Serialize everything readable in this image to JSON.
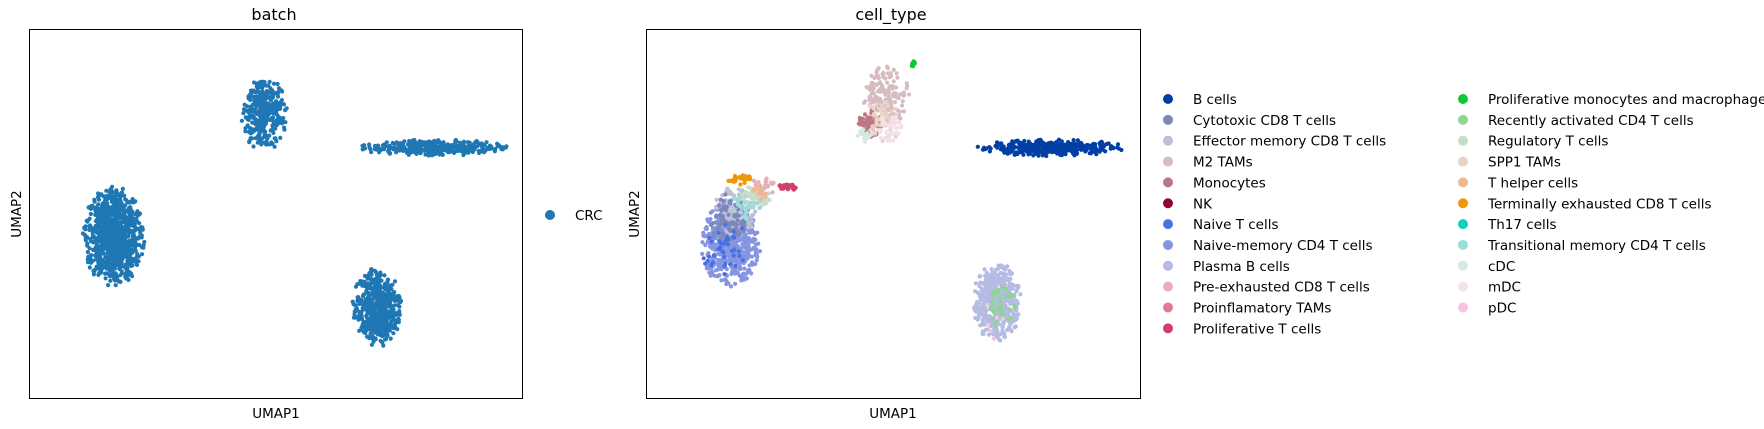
{
  "chart_data": [
    {
      "type": "scatter",
      "title": "batch",
      "xlabel": "UMAP1",
      "ylabel": "UMAP2",
      "xticks": [],
      "yticks": [],
      "xlim": [
        -1,
        19
      ],
      "ylim": [
        -1,
        14
      ],
      "legend": {
        "placement": "right",
        "entries": [
          {
            "name": "CRC",
            "color": "#1f77b4"
          }
        ]
      },
      "clusters": [
        {
          "name": "CRC",
          "center": [
            2.4,
            5.6
          ],
          "spread": [
            1.2,
            1.95
          ],
          "n": 900,
          "color": "#1f77b4"
        },
        {
          "name": "CRC",
          "center": [
            8.5,
            10.6
          ],
          "spread": [
            0.9,
            1.5
          ],
          "n": 320,
          "color": "#1f77b4"
        },
        {
          "name": "CRC",
          "center": [
            15.4,
            9.2
          ],
          "spread": [
            2.9,
            0.32
          ],
          "n": 360,
          "color": "#1f77b4"
        },
        {
          "name": "CRC",
          "center": [
            13.1,
            2.7
          ],
          "spread": [
            0.95,
            1.55
          ],
          "n": 520,
          "color": "#1f77b4"
        }
      ]
    },
    {
      "type": "scatter",
      "title": "cell_type",
      "xlabel": "UMAP1",
      "ylabel": "UMAP2",
      "xticks": [],
      "yticks": [],
      "xlim": [
        -1,
        19
      ],
      "ylim": [
        -1,
        14
      ],
      "legend": {
        "placement": "right",
        "columns": 2,
        "entries": [
          {
            "name": "B cells",
            "color": "#023fa5"
          },
          {
            "name": "Cytotoxic CD8 T cells",
            "color": "#7d87b9"
          },
          {
            "name": "Effector memory CD8 T cells",
            "color": "#bec1d4"
          },
          {
            "name": "M2 TAMs",
            "color": "#d6bcc0"
          },
          {
            "name": "Monocytes",
            "color": "#bb7784"
          },
          {
            "name": "NK",
            "color": "#8e063b"
          },
          {
            "name": "Naive T cells",
            "color": "#4a6fe3"
          },
          {
            "name": "Naive-memory CD4 T cells",
            "color": "#8595e1"
          },
          {
            "name": "Plasma B cells",
            "color": "#b5bbe3"
          },
          {
            "name": "Pre-exhausted CD8 T cells",
            "color": "#e6afb9"
          },
          {
            "name": "Proinflamatory TAMs",
            "color": "#e07b91"
          },
          {
            "name": "Proliferative T cells",
            "color": "#d33f6a"
          },
          {
            "name": "Proliferative monocytes and macrophages",
            "color": "#11c638"
          },
          {
            "name": "Recently activated CD4 T cells",
            "color": "#8dd593"
          },
          {
            "name": "Regulatory T cells",
            "color": "#c6dec7"
          },
          {
            "name": "SPP1 TAMs",
            "color": "#ead3c6"
          },
          {
            "name": "T helper cells",
            "color": "#f0b98d"
          },
          {
            "name": "Terminally exhausted CD8 T cells",
            "color": "#ef9708"
          },
          {
            "name": "Th17 cells",
            "color": "#0fcfc0"
          },
          {
            "name": "Transitional memory CD4 T cells",
            "color": "#9cded6"
          },
          {
            "name": "cDC",
            "color": "#d5eae7"
          },
          {
            "name": "mDC",
            "color": "#f3e1eb"
          },
          {
            "name": "pDC",
            "color": "#f6c4e1"
          }
        ]
      },
      "clusters": [
        {
          "name": "Naive-memory CD4 T cells",
          "center": [
            2.4,
            5.3
          ],
          "spread": [
            1.15,
            1.7
          ],
          "n": 520,
          "color": "#8595e1"
        },
        {
          "name": "Effector memory CD8 T cells",
          "center": [
            2.6,
            6.6
          ],
          "spread": [
            0.9,
            1.0
          ],
          "n": 110,
          "color": "#bec1d4"
        },
        {
          "name": "Cytotoxic CD8 T cells",
          "center": [
            2.4,
            6.2
          ],
          "spread": [
            0.8,
            1.1
          ],
          "n": 80,
          "color": "#7d87b9"
        },
        {
          "name": "Naive T cells",
          "center": [
            2.2,
            5.0
          ],
          "spread": [
            0.9,
            1.3
          ],
          "n": 40,
          "color": "#4a6fe3"
        },
        {
          "name": "Regulatory T cells",
          "center": [
            3.4,
            7.2
          ],
          "spread": [
            0.6,
            0.45
          ],
          "n": 45,
          "color": "#c6dec7"
        },
        {
          "name": "Transitional memory CD4 T cells",
          "center": [
            3.0,
            6.8
          ],
          "spread": [
            0.6,
            0.5
          ],
          "n": 25,
          "color": "#9cded6"
        },
        {
          "name": "Terminally exhausted CD8 T cells",
          "center": [
            2.8,
            7.9
          ],
          "spread": [
            0.55,
            0.2
          ],
          "n": 25,
          "color": "#ef9708"
        },
        {
          "name": "Pre-exhausted CD8 T cells",
          "center": [
            3.7,
            7.6
          ],
          "spread": [
            0.6,
            0.35
          ],
          "n": 30,
          "color": "#e6afb9"
        },
        {
          "name": "Proliferative T cells",
          "center": [
            4.7,
            7.6
          ],
          "spread": [
            0.35,
            0.15
          ],
          "n": 30,
          "color": "#d33f6a"
        },
        {
          "name": "T helper cells",
          "center": [
            3.6,
            7.4
          ],
          "spread": [
            0.4,
            0.3
          ],
          "n": 12,
          "color": "#f0b98d"
        },
        {
          "name": "M2 TAMs",
          "center": [
            8.7,
            11.3
          ],
          "spread": [
            0.9,
            1.2
          ],
          "n": 160,
          "color": "#d6bcc0"
        },
        {
          "name": "Monocytes",
          "center": [
            8.1,
            10.2
          ],
          "spread": [
            0.5,
            0.6
          ],
          "n": 70,
          "color": "#bb7784"
        },
        {
          "name": "SPP1 TAMs",
          "center": [
            8.6,
            10.3
          ],
          "spread": [
            0.7,
            0.9
          ],
          "n": 60,
          "color": "#ead3c6"
        },
        {
          "name": "mDC",
          "center": [
            8.8,
            10.0
          ],
          "spread": [
            0.5,
            0.6
          ],
          "n": 40,
          "color": "#f3e1eb"
        },
        {
          "name": "cDC",
          "center": [
            7.8,
            9.7
          ],
          "spread": [
            0.35,
            0.3
          ],
          "n": 15,
          "color": "#d5eae7"
        },
        {
          "name": "Proliferative monocytes and macrophages",
          "center": [
            9.8,
            12.6
          ],
          "spread": [
            0.1,
            0.15
          ],
          "n": 12,
          "color": "#11c638"
        },
        {
          "name": "B cells",
          "center": [
            15.4,
            9.2
          ],
          "spread": [
            2.9,
            0.32
          ],
          "n": 360,
          "color": "#023fa5"
        },
        {
          "name": "Plasma B cells",
          "center": [
            13.2,
            2.9
          ],
          "spread": [
            0.95,
            1.55
          ],
          "n": 480,
          "color": "#b5bbe3"
        },
        {
          "name": "Recently activated CD4 T cells",
          "center": [
            13.4,
            2.9
          ],
          "spread": [
            0.5,
            1.1
          ],
          "n": 35,
          "color": "#8dd593"
        },
        {
          "name": "pDC",
          "center": [
            13.0,
            2.2
          ],
          "spread": [
            0.6,
            0.8
          ],
          "n": 6,
          "color": "#f6c4e1"
        }
      ]
    }
  ]
}
